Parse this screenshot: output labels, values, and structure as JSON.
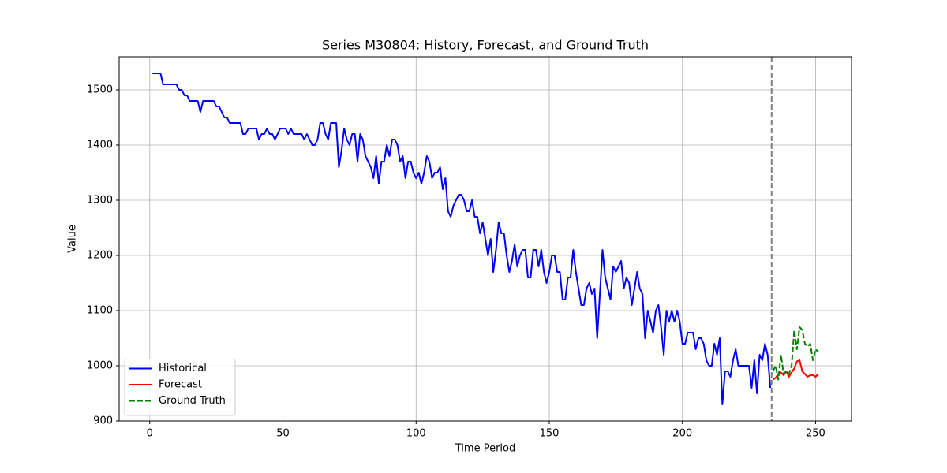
{
  "chart_data": {
    "type": "line",
    "title": "Series M30804: History, Forecast, and Ground Truth",
    "xlabel": "Time Period",
    "ylabel": "Value",
    "xlim": [
      -11.5,
      263.5
    ],
    "ylim": [
      900,
      1560
    ],
    "xticks": [
      0,
      50,
      100,
      150,
      200,
      250
    ],
    "yticks": [
      900,
      1000,
      1100,
      1200,
      1300,
      1400,
      1500
    ],
    "grid": true,
    "legend": "lower left",
    "vline": {
      "x": 233.5,
      "color": "#808080",
      "dash": true
    },
    "series": [
      {
        "name": "Historical",
        "color": "#0000ff",
        "dash": false,
        "x": [
          1,
          2,
          3,
          4,
          5,
          6,
          7,
          8,
          9,
          10,
          11,
          12,
          13,
          14,
          15,
          16,
          17,
          18,
          19,
          20,
          21,
          22,
          23,
          24,
          25,
          26,
          27,
          28,
          29,
          30,
          31,
          32,
          33,
          34,
          35,
          36,
          37,
          38,
          39,
          40,
          41,
          42,
          43,
          44,
          45,
          46,
          47,
          48,
          49,
          50,
          51,
          52,
          53,
          54,
          55,
          56,
          57,
          58,
          59,
          60,
          61,
          62,
          63,
          64,
          65,
          66,
          67,
          68,
          69,
          70,
          71,
          72,
          73,
          74,
          75,
          76,
          77,
          78,
          79,
          80,
          81,
          82,
          83,
          84,
          85,
          86,
          87,
          88,
          89,
          90,
          91,
          92,
          93,
          94,
          95,
          96,
          97,
          98,
          99,
          100,
          101,
          102,
          103,
          104,
          105,
          106,
          107,
          108,
          109,
          110,
          111,
          112,
          113,
          114,
          115,
          116,
          117,
          118,
          119,
          120,
          121,
          122,
          123,
          124,
          125,
          126,
          127,
          128,
          129,
          130,
          131,
          132,
          133,
          134,
          135,
          136,
          137,
          138,
          139,
          140,
          141,
          142,
          143,
          144,
          145,
          146,
          147,
          148,
          149,
          150,
          151,
          152,
          153,
          154,
          155,
          156,
          157,
          158,
          159,
          160,
          161,
          162,
          163,
          164,
          165,
          166,
          167,
          168,
          169,
          170,
          171,
          172,
          173,
          174,
          175,
          176,
          177,
          178,
          179,
          180,
          181,
          182,
          183,
          184,
          185,
          186,
          187,
          188,
          189,
          190,
          191,
          192,
          193,
          194,
          195,
          196,
          197,
          198,
          199,
          200,
          201,
          202,
          203,
          204,
          205,
          206,
          207,
          208,
          209,
          210,
          211,
          212,
          213,
          214,
          215,
          216,
          217,
          218,
          219,
          220,
          221,
          222,
          223,
          224,
          225,
          226,
          227,
          228,
          229,
          230,
          231,
          232,
          233
        ],
        "values": [
          1530,
          1530,
          1530,
          1530,
          1510,
          1510,
          1510,
          1510,
          1510,
          1510,
          1500,
          1500,
          1490,
          1490,
          1480,
          1480,
          1480,
          1480,
          1460,
          1480,
          1480,
          1480,
          1480,
          1480,
          1470,
          1470,
          1460,
          1450,
          1450,
          1440,
          1440,
          1440,
          1440,
          1440,
          1420,
          1420,
          1430,
          1430,
          1430,
          1430,
          1410,
          1420,
          1420,
          1430,
          1420,
          1420,
          1410,
          1420,
          1430,
          1430,
          1430,
          1420,
          1430,
          1420,
          1420,
          1420,
          1420,
          1410,
          1420,
          1410,
          1400,
          1400,
          1410,
          1440,
          1440,
          1420,
          1410,
          1440,
          1440,
          1440,
          1360,
          1390,
          1430,
          1410,
          1400,
          1420,
          1420,
          1370,
          1420,
          1410,
          1380,
          1370,
          1360,
          1340,
          1380,
          1330,
          1370,
          1370,
          1400,
          1380,
          1410,
          1410,
          1400,
          1370,
          1380,
          1340,
          1370,
          1370,
          1350,
          1340,
          1350,
          1330,
          1350,
          1380,
          1370,
          1340,
          1350,
          1350,
          1360,
          1320,
          1340,
          1280,
          1270,
          1290,
          1300,
          1310,
          1310,
          1300,
          1280,
          1280,
          1300,
          1270,
          1270,
          1240,
          1260,
          1230,
          1200,
          1230,
          1170,
          1210,
          1260,
          1240,
          1240,
          1200,
          1170,
          1190,
          1220,
          1180,
          1200,
          1210,
          1210,
          1160,
          1160,
          1210,
          1210,
          1180,
          1210,
          1170,
          1150,
          1170,
          1200,
          1200,
          1170,
          1170,
          1120,
          1120,
          1160,
          1160,
          1210,
          1170,
          1140,
          1110,
          1110,
          1140,
          1150,
          1130,
          1140,
          1050,
          1130,
          1210,
          1160,
          1140,
          1120,
          1180,
          1170,
          1180,
          1190,
          1140,
          1160,
          1150,
          1110,
          1140,
          1170,
          1140,
          1130,
          1050,
          1100,
          1080,
          1060,
          1100,
          1110,
          1070,
          1020,
          1100,
          1080,
          1100,
          1080,
          1100,
          1080,
          1040,
          1040,
          1060,
          1060,
          1060,
          1030,
          1050,
          1050,
          1040,
          1010,
          1000,
          1000,
          1040,
          1020,
          1050,
          930,
          990,
          990,
          980,
          1010,
          1030,
          1000,
          1000,
          1000,
          1000,
          1000,
          960,
          1010,
          950,
          1020,
          1010,
          1040,
          1020,
          960
        ]
      },
      {
        "name": "Forecast",
        "color": "#ff0000",
        "dash": false,
        "x": [
          234,
          235,
          236,
          237,
          238,
          239,
          240,
          241,
          242,
          243,
          244,
          245,
          246,
          247,
          248,
          249,
          250,
          251
        ],
        "values": [
          975,
          978,
          985,
          988,
          983,
          990,
          980,
          988,
          995,
          1008,
          1010,
          990,
          985,
          980,
          983,
          983,
          980,
          985
        ]
      },
      {
        "name": "Ground Truth",
        "color": "#008000",
        "dash": true,
        "x": [
          234,
          235,
          236,
          237,
          238,
          239,
          240,
          241,
          242,
          243,
          244,
          245,
          246,
          247,
          248,
          249,
          250,
          251
        ],
        "values": [
          990,
          1000,
          975,
          1020,
          985,
          990,
          985,
          1000,
          1065,
          1030,
          1070,
          1065,
          1040,
          1035,
          1040,
          1010,
          1030,
          1025
        ]
      }
    ]
  }
}
